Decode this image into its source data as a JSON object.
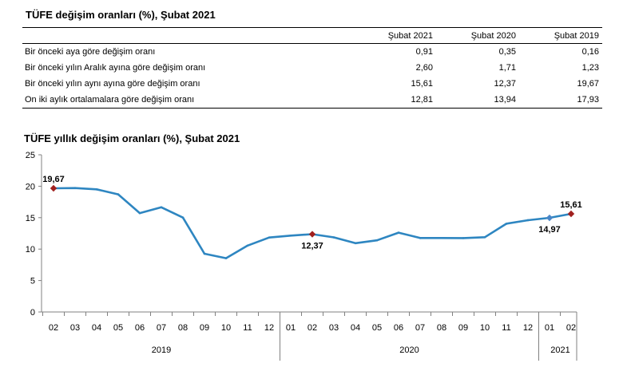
{
  "table": {
    "title": "TÜFE değişim oranları (%), Şubat 2021",
    "columns": [
      "Şubat 2021",
      "Şubat 2020",
      "Şubat 2019"
    ],
    "rows": [
      {
        "label": "Bir önceki aya göre değişim oranı",
        "values": [
          "0,91",
          "0,35",
          "0,16"
        ]
      },
      {
        "label": "Bir önceki yılın Aralık ayına göre değişim oranı",
        "values": [
          "2,60",
          "1,71",
          "1,23"
        ]
      },
      {
        "label": "Bir önceki yılın aynı ayına göre değişim oranı",
        "values": [
          "15,61",
          "12,37",
          "19,67"
        ]
      },
      {
        "label": "On iki aylık ortalamalara göre değişim oranı",
        "values": [
          "12,81",
          "13,94",
          "17,93"
        ]
      }
    ]
  },
  "chart_data": {
    "type": "line",
    "title": "TÜFE yıllık değişim oranları (%), Şubat 2021",
    "xlabel": "",
    "ylabel": "",
    "ylim": [
      0,
      25
    ],
    "yticks": [
      "0",
      "5",
      "10",
      "15",
      "20",
      "25"
    ],
    "grid": false,
    "legend": "none",
    "categories": [
      "02",
      "03",
      "04",
      "05",
      "06",
      "07",
      "08",
      "09",
      "10",
      "11",
      "12",
      "01",
      "02",
      "03",
      "04",
      "05",
      "06",
      "07",
      "08",
      "09",
      "10",
      "11",
      "12",
      "01",
      "02"
    ],
    "year_groups": [
      {
        "label": "2019",
        "count": 11
      },
      {
        "label": "2020",
        "count": 12
      },
      {
        "label": "2021",
        "count": 2
      }
    ],
    "series": [
      {
        "values": [
          19.67,
          19.71,
          19.5,
          18.71,
          15.72,
          16.65,
          15.01,
          9.26,
          8.55,
          10.56,
          11.84,
          12.15,
          12.37,
          11.86,
          10.94,
          11.39,
          12.62,
          11.76,
          11.77,
          11.75,
          11.89,
          14.03,
          14.6,
          14.97,
          15.61
        ],
        "color": "#2e86c1"
      }
    ],
    "annotations": [
      {
        "index": 0,
        "label": "19,67",
        "marker": "diamond",
        "color": "#a0201e",
        "position": "above"
      },
      {
        "index": 12,
        "label": "12,37",
        "marker": "diamond",
        "color": "#a0201e",
        "position": "below"
      },
      {
        "index": 23,
        "label": "14,97",
        "marker": "diamond",
        "color": "#4a86c8",
        "position": "below"
      },
      {
        "index": 24,
        "label": "15,61",
        "marker": "diamond",
        "color": "#a0201e",
        "position": "above"
      }
    ]
  }
}
